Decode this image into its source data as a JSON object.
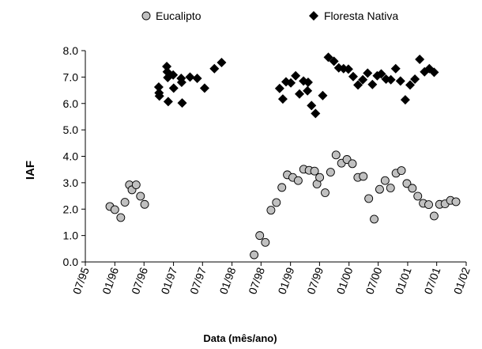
{
  "chart_data": {
    "type": "scatter",
    "xlabel": "Data (mês/ano)",
    "ylabel": "IAF",
    "xlim": [
      "1995-07-01",
      "2002-01-01"
    ],
    "ylim": [
      0,
      8
    ],
    "y_ticks": [
      "0.0",
      "1.0",
      "2.0",
      "3.0",
      "4.0",
      "5.0",
      "6.0",
      "7.0",
      "8.0"
    ],
    "x_ticks": [
      {
        "date": "1995-07-01",
        "label": "07/95"
      },
      {
        "date": "1996-01-01",
        "label": "01/96"
      },
      {
        "date": "1996-07-01",
        "label": "07/96"
      },
      {
        "date": "1997-01-01",
        "label": "01/97"
      },
      {
        "date": "1997-07-01",
        "label": "07/97"
      },
      {
        "date": "1998-01-01",
        "label": "01/98"
      },
      {
        "date": "1998-07-01",
        "label": "07/98"
      },
      {
        "date": "1999-01-01",
        "label": "01/99"
      },
      {
        "date": "1999-07-01",
        "label": "07/99"
      },
      {
        "date": "2000-01-01",
        "label": "01/00"
      },
      {
        "date": "2000-07-01",
        "label": "07/00"
      },
      {
        "date": "2001-01-01",
        "label": "01/01"
      },
      {
        "date": "2001-07-01",
        "label": "07/01"
      },
      {
        "date": "2002-01-01",
        "label": "01/02"
      }
    ],
    "grid": false,
    "legend_position": "top",
    "series": [
      {
        "name": "Eucalipto",
        "marker": "circle",
        "color": "#c0c0c0",
        "points": [
          {
            "x": "1995-12-01",
            "y": 2.1
          },
          {
            "x": "1996-01-01",
            "y": 1.98
          },
          {
            "x": "1996-02-07",
            "y": 1.68
          },
          {
            "x": "1996-03-04",
            "y": 2.26
          },
          {
            "x": "1996-04-01",
            "y": 2.92
          },
          {
            "x": "1996-04-17",
            "y": 2.73
          },
          {
            "x": "1996-05-13",
            "y": 2.92
          },
          {
            "x": "1996-06-09",
            "y": 2.49
          },
          {
            "x": "1996-07-05",
            "y": 2.18
          },
          {
            "x": "1998-05-19",
            "y": 0.27
          },
          {
            "x": "1998-06-23",
            "y": 1.0
          },
          {
            "x": "1998-07-28",
            "y": 0.74
          },
          {
            "x": "1998-09-01",
            "y": 1.96
          },
          {
            "x": "1998-10-05",
            "y": 2.25
          },
          {
            "x": "1998-11-08",
            "y": 2.82
          },
          {
            "x": "1998-12-12",
            "y": 3.3
          },
          {
            "x": "1999-01-15",
            "y": 3.2
          },
          {
            "x": "1999-02-18",
            "y": 3.08
          },
          {
            "x": "1999-03-24",
            "y": 3.51
          },
          {
            "x": "1999-04-27",
            "y": 3.47
          },
          {
            "x": "1999-05-31",
            "y": 3.44
          },
          {
            "x": "1999-06-15",
            "y": 2.95
          },
          {
            "x": "1999-07-02",
            "y": 3.2
          },
          {
            "x": "1999-08-05",
            "y": 2.62
          },
          {
            "x": "1999-09-08",
            "y": 3.4
          },
          {
            "x": "1999-10-12",
            "y": 4.05
          },
          {
            "x": "1999-11-15",
            "y": 3.74
          },
          {
            "x": "1999-12-19",
            "y": 3.88
          },
          {
            "x": "2000-01-22",
            "y": 3.72
          },
          {
            "x": "2000-02-25",
            "y": 3.2
          },
          {
            "x": "2000-03-30",
            "y": 3.24
          },
          {
            "x": "2000-05-03",
            "y": 2.4
          },
          {
            "x": "2000-06-06",
            "y": 1.62
          },
          {
            "x": "2000-07-10",
            "y": 2.75
          },
          {
            "x": "2000-08-13",
            "y": 3.08
          },
          {
            "x": "2000-09-16",
            "y": 2.8
          },
          {
            "x": "2000-10-20",
            "y": 3.36
          },
          {
            "x": "2000-11-23",
            "y": 3.46
          },
          {
            "x": "2000-12-27",
            "y": 2.97
          },
          {
            "x": "2001-01-30",
            "y": 2.79
          },
          {
            "x": "2001-03-05",
            "y": 2.49
          },
          {
            "x": "2001-04-08",
            "y": 2.22
          },
          {
            "x": "2001-05-12",
            "y": 2.17
          },
          {
            "x": "2001-06-15",
            "y": 1.74
          },
          {
            "x": "2001-07-19",
            "y": 2.18
          },
          {
            "x": "2001-08-22",
            "y": 2.2
          },
          {
            "x": "2001-09-25",
            "y": 2.33
          },
          {
            "x": "2001-10-29",
            "y": 2.28
          }
        ]
      },
      {
        "name": "Floresta Nativa",
        "marker": "diamond",
        "color": "#000000",
        "points": [
          {
            "x": "1996-10-01",
            "y": 6.62
          },
          {
            "x": "1996-10-03",
            "y": 6.4
          },
          {
            "x": "1996-10-05",
            "y": 6.28
          },
          {
            "x": "1996-11-20",
            "y": 7.4
          },
          {
            "x": "1996-11-23",
            "y": 7.2
          },
          {
            "x": "1996-11-26",
            "y": 6.98
          },
          {
            "x": "1996-11-29",
            "y": 6.07
          },
          {
            "x": "1996-12-30",
            "y": 7.08
          },
          {
            "x": "1997-01-02",
            "y": 6.58
          },
          {
            "x": "1997-02-18",
            "y": 6.95
          },
          {
            "x": "1997-02-21",
            "y": 6.8
          },
          {
            "x": "1997-02-24",
            "y": 6.02
          },
          {
            "x": "1997-04-14",
            "y": 7.0
          },
          {
            "x": "1997-05-29",
            "y": 6.95
          },
          {
            "x": "1997-07-14",
            "y": 6.58
          },
          {
            "x": "1997-09-13",
            "y": 7.32
          },
          {
            "x": "1997-10-28",
            "y": 7.55
          },
          {
            "x": "1998-10-25",
            "y": 6.57
          },
          {
            "x": "1998-11-14",
            "y": 6.17
          },
          {
            "x": "1998-12-04",
            "y": 6.82
          },
          {
            "x": "1999-01-03",
            "y": 6.78
          },
          {
            "x": "1999-02-02",
            "y": 7.05
          },
          {
            "x": "1999-02-26",
            "y": 6.36
          },
          {
            "x": "1999-03-23",
            "y": 6.85
          },
          {
            "x": "1999-04-17",
            "y": 6.48
          },
          {
            "x": "1999-04-21",
            "y": 6.8
          },
          {
            "x": "1999-05-12",
            "y": 5.92
          },
          {
            "x": "1999-06-06",
            "y": 5.62
          },
          {
            "x": "1999-07-21",
            "y": 6.3
          },
          {
            "x": "1999-08-25",
            "y": 7.75
          },
          {
            "x": "1999-09-29",
            "y": 7.6
          },
          {
            "x": "1999-10-29",
            "y": 7.35
          },
          {
            "x": "1999-11-28",
            "y": 7.32
          },
          {
            "x": "1999-12-28",
            "y": 7.3
          },
          {
            "x": "2000-01-27",
            "y": 7.02
          },
          {
            "x": "2000-02-26",
            "y": 6.7
          },
          {
            "x": "2000-03-27",
            "y": 6.9
          },
          {
            "x": "2000-04-26",
            "y": 7.15
          },
          {
            "x": "2000-05-26",
            "y": 6.72
          },
          {
            "x": "2000-06-25",
            "y": 7.05
          },
          {
            "x": "2000-07-20",
            "y": 7.12
          },
          {
            "x": "2000-08-19",
            "y": 6.92
          },
          {
            "x": "2000-09-18",
            "y": 6.9
          },
          {
            "x": "2000-10-18",
            "y": 7.32
          },
          {
            "x": "2000-11-17",
            "y": 6.85
          },
          {
            "x": "2000-12-17",
            "y": 6.14
          },
          {
            "x": "2001-01-16",
            "y": 6.7
          },
          {
            "x": "2001-02-15",
            "y": 6.92
          },
          {
            "x": "2001-03-17",
            "y": 7.67
          },
          {
            "x": "2001-04-16",
            "y": 7.2
          },
          {
            "x": "2001-05-16",
            "y": 7.32
          },
          {
            "x": "2001-06-15",
            "y": 7.18
          }
        ]
      }
    ]
  }
}
